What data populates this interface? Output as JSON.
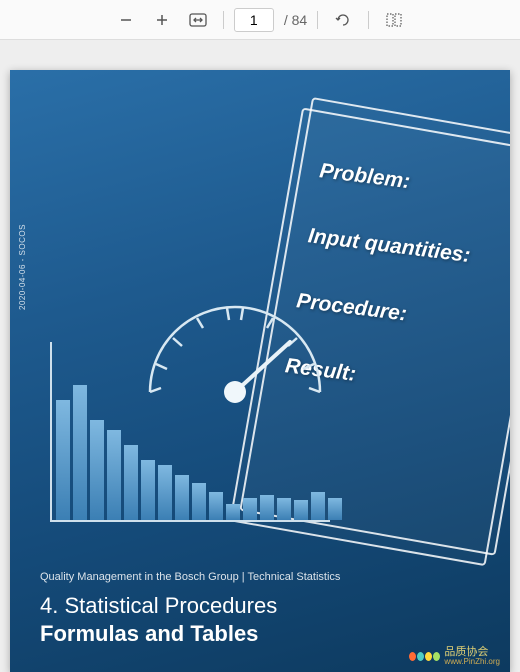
{
  "toolbar": {
    "current_page": "1",
    "total_pages": "84"
  },
  "side_text": "2020-04-06 - SOCOS",
  "card_labels": [
    "Problem:",
    "Input quantities:",
    "Procedure:",
    "Result:"
  ],
  "bars": [
    120,
    135,
    100,
    90,
    75,
    60,
    55,
    45,
    37,
    28,
    16,
    22,
    25,
    22,
    20,
    28,
    22
  ],
  "footer": {
    "line": "Quality Management in the Bosch Group | Technical Statistics",
    "title1": "4. Statistical Procedures",
    "title2": "Formulas and Tables"
  },
  "watermark": {
    "text": "品质协会",
    "sub": "www.PinZhi.org"
  },
  "petal_colors": [
    "#ff6b35",
    "#4ecdc4",
    "#ffd93d",
    "#a8e063"
  ],
  "colors": {
    "bg_gradient_start": "#2a6fa8",
    "bg_gradient_end": "#0d3a5f",
    "axis": "#cfe0ec",
    "bar_top": "#7fb8e0",
    "bar_bottom": "#3b7fb4"
  }
}
